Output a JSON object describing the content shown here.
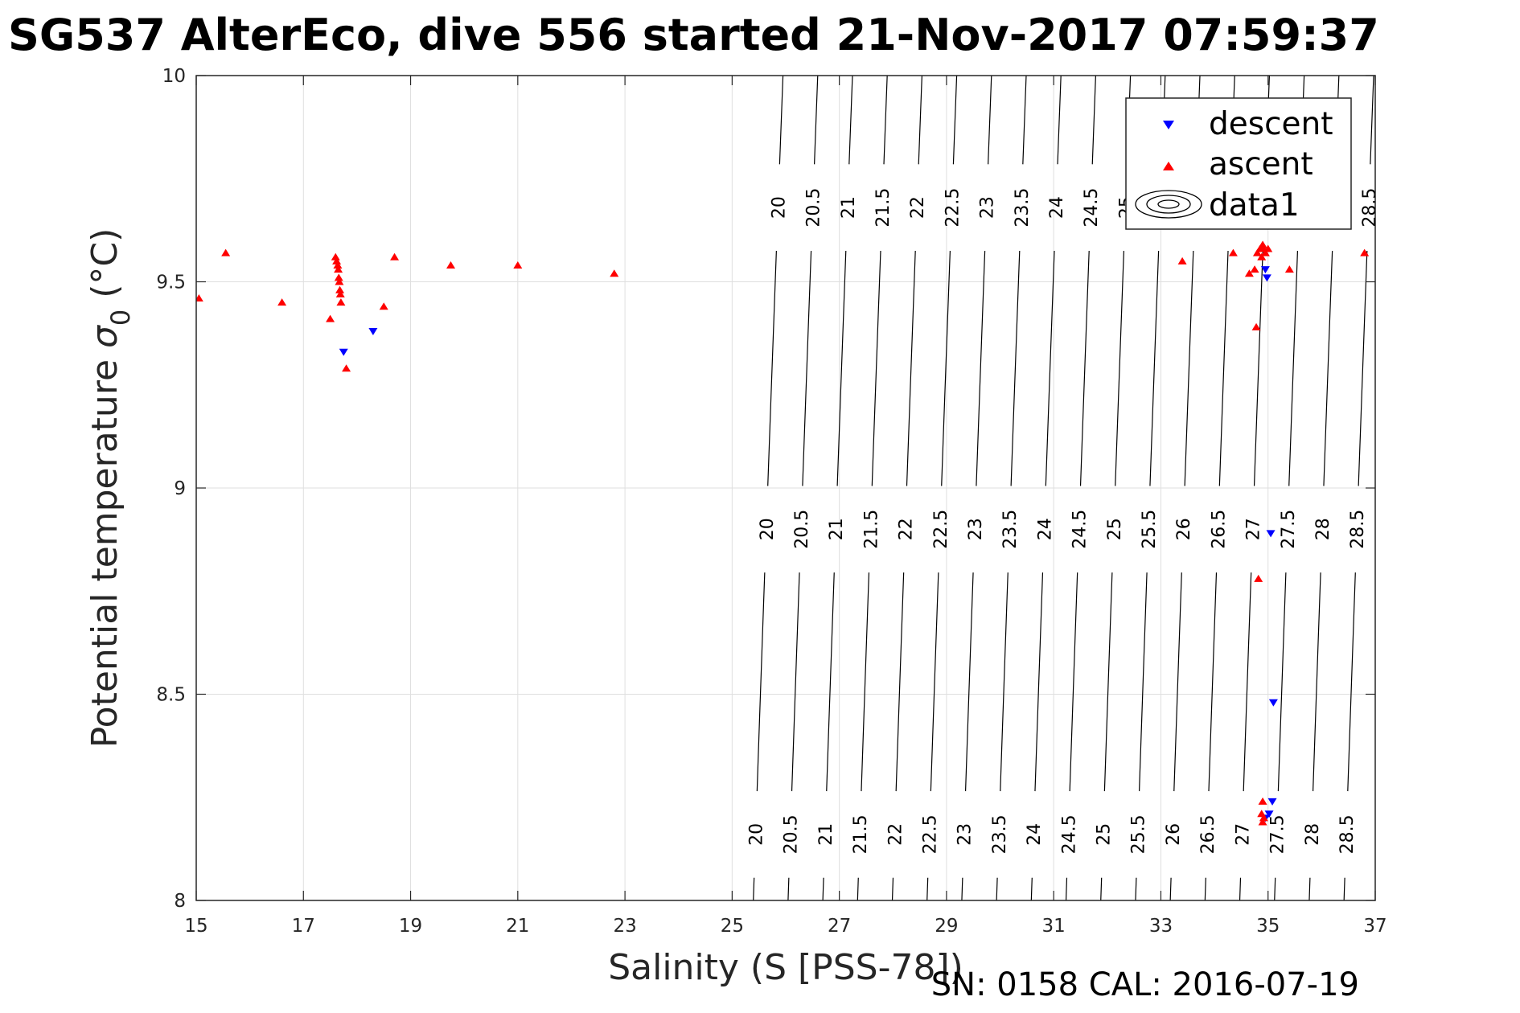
{
  "chart_data": {
    "type": "scatter",
    "title": "SG537 AlterEco, dive 556 started 21-Nov-2017 07:59:37",
    "xlabel": "Salinity (S [PSS-78])",
    "ylabel_main": "Potential temperature ",
    "ylabel_sigma": "σ",
    "ylabel_sub": "0",
    "ylabel_unit": " (°C)",
    "xlim": [
      15,
      37
    ],
    "ylim": [
      8,
      10
    ],
    "x_ticks": [
      "15",
      "17",
      "19",
      "21",
      "23",
      "25",
      "27",
      "29",
      "31",
      "33",
      "35",
      "37"
    ],
    "y_ticks": [
      "8",
      "8.5",
      "9",
      "9.5",
      "10"
    ],
    "grid": true,
    "legend": {
      "position": "top-right",
      "entries": [
        "descent",
        "ascent",
        "data1"
      ]
    },
    "contour_levels": [
      "20",
      "20.5",
      "21",
      "21.5",
      "22",
      "22.5",
      "23",
      "23.5",
      "24",
      "24.5",
      "25",
      "25.5",
      "26",
      "26.5",
      "27",
      "27.5",
      "28",
      "28.5"
    ],
    "contour_label_temps": [
      9.68,
      8.9,
      8.16
    ],
    "series": [
      {
        "name": "descent",
        "color": "#0000ff",
        "marker": "triangle-down",
        "points": [
          [
            17.75,
            9.33
          ],
          [
            18.3,
            9.38
          ],
          [
            34.95,
            9.53
          ],
          [
            34.98,
            9.51
          ],
          [
            35.05,
            8.89
          ],
          [
            35.1,
            8.48
          ],
          [
            35.08,
            8.24
          ],
          [
            35.02,
            8.21
          ],
          [
            34.95,
            8.2
          ]
        ]
      },
      {
        "name": "ascent",
        "color": "#ff0000",
        "marker": "triangle-up",
        "points": [
          [
            15.05,
            9.46
          ],
          [
            15.55,
            9.57
          ],
          [
            16.6,
            9.45
          ],
          [
            17.5,
            9.41
          ],
          [
            17.6,
            9.56
          ],
          [
            17.62,
            9.55
          ],
          [
            17.64,
            9.54
          ],
          [
            17.65,
            9.53
          ],
          [
            17.66,
            9.51
          ],
          [
            17.67,
            9.5
          ],
          [
            17.68,
            9.48
          ],
          [
            17.69,
            9.47
          ],
          [
            17.7,
            9.45
          ],
          [
            17.8,
            9.29
          ],
          [
            18.5,
            9.44
          ],
          [
            18.7,
            9.56
          ],
          [
            19.75,
            9.54
          ],
          [
            21.0,
            9.54
          ],
          [
            22.8,
            9.52
          ],
          [
            33.4,
            9.55
          ],
          [
            34.35,
            9.57
          ],
          [
            34.65,
            9.52
          ],
          [
            34.75,
            9.53
          ],
          [
            34.78,
            9.39
          ],
          [
            34.8,
            9.57
          ],
          [
            34.85,
            9.58
          ],
          [
            34.88,
            9.56
          ],
          [
            34.9,
            9.59
          ],
          [
            34.92,
            9.58
          ],
          [
            34.95,
            9.57
          ],
          [
            35.0,
            9.58
          ],
          [
            35.4,
            9.53
          ],
          [
            36.8,
            9.57
          ],
          [
            34.82,
            8.78
          ],
          [
            34.9,
            8.24
          ],
          [
            34.88,
            8.21
          ],
          [
            34.92,
            8.2
          ],
          [
            34.9,
            8.19
          ]
        ]
      }
    ]
  },
  "footer": "SN: 0158  CAL: 2016-07-19"
}
